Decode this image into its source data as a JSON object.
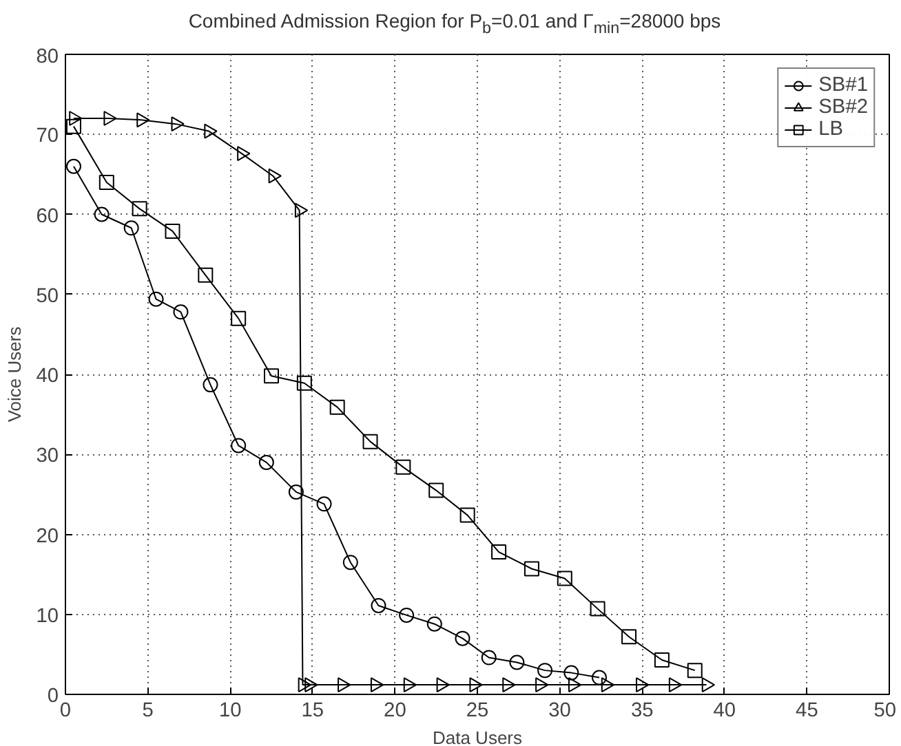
{
  "chart_data": {
    "type": "line",
    "title": "Combined Admission Region for P$_{b}$=0.01 and Γ$_{min}$=28000 bps",
    "xlabel": "Data Users",
    "ylabel": "Voice Users",
    "xlim": [
      0,
      50
    ],
    "ylim": [
      0,
      80
    ],
    "xticks": [
      0,
      5,
      10,
      15,
      20,
      25,
      30,
      35,
      40,
      45,
      50
    ],
    "yticks": [
      0,
      10,
      20,
      30,
      40,
      50,
      60,
      70,
      80
    ],
    "grid": true,
    "legend": "top right",
    "line_style": "solid",
    "series": [
      {
        "name": "SB#1",
        "color": "#000000",
        "marker": "circle",
        "x": [
          0.5,
          2.2,
          4,
          5.5,
          7,
          8.8,
          10.5,
          12.2,
          14,
          15.7,
          17.3,
          19,
          20.7,
          22.4,
          24.1,
          25.7,
          27.4,
          29.1,
          30.7,
          32.4
        ],
        "values": [
          66,
          60,
          58.3,
          49.4,
          47.8,
          38.7,
          31.1,
          29,
          25.3,
          23.8,
          16.5,
          11.1,
          9.9,
          8.8,
          7,
          4.6,
          4,
          3,
          2.7,
          2.1
        ]
      },
      {
        "name": "SB#2",
        "color": "#000000",
        "marker": "triangle",
        "x": [
          0.5,
          2.6,
          4.6,
          6.7,
          8.7,
          10.7,
          12.6,
          14.2,
          14.4,
          14.8,
          16.8,
          18.8,
          20.8,
          22.8,
          24.8,
          26.8,
          28.8,
          30.8,
          32.8,
          34.9,
          36.9,
          38.9
        ],
        "values": [
          72,
          72,
          71.8,
          71.3,
          70.4,
          67.6,
          64.8,
          60.5,
          1.2,
          1.2,
          1.2,
          1.2,
          1.2,
          1.2,
          1.2,
          1.2,
          1.2,
          1.2,
          1.2,
          1.2,
          1.2,
          1.2
        ]
      },
      {
        "name": "LB",
        "color": "#000000",
        "marker": "square",
        "x": [
          0.5,
          2.5,
          4.5,
          6.5,
          8.5,
          10.5,
          12.5,
          14.5,
          16.5,
          18.5,
          20.5,
          22.5,
          24.4,
          26.3,
          28.3,
          30.3,
          32.3,
          34.2,
          36.2,
          38.2
        ],
        "values": [
          71,
          64,
          60.7,
          57.9,
          52.4,
          47,
          39.8,
          38.9,
          35.9,
          31.6,
          28.4,
          25.5,
          22.4,
          17.8,
          15.7,
          14.5,
          10.7,
          7.2,
          4.3,
          3
        ]
      }
    ]
  }
}
